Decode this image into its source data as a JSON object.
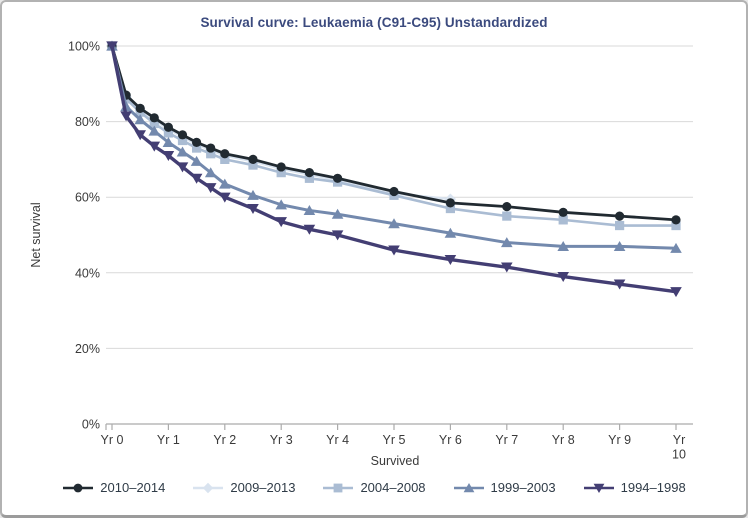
{
  "chart": {
    "title_color": "#3b4a7e",
    "gridline_color": "#d9d9d9",
    "axis_line_color": "#ababab",
    "tick_label_color": "#3a3a3a",
    "legend_text_color": "#2f3b47"
  },
  "chart_data": {
    "type": "line",
    "title": "Survival curve: Leukaemia (C91-C95) Unstandardized",
    "xlabel": "Survived",
    "ylabel": "Net survival",
    "x_unit": "years survived",
    "ylim": [
      0,
      100
    ],
    "xlim": [
      0,
      10
    ],
    "grid": "horizontal",
    "legend_position": "bottom",
    "y_tick_values": [
      0,
      20,
      40,
      60,
      80,
      100
    ],
    "y_tick_labels": [
      "0%",
      "20%",
      "40%",
      "60%",
      "80%",
      "100%"
    ],
    "x_tick_values": [
      0,
      1,
      2,
      3,
      4,
      5,
      6,
      7,
      8,
      9,
      10
    ],
    "x_tick_labels": [
      "Yr 0",
      "Yr 1",
      "Yr 2",
      "Yr 3",
      "Yr 4",
      "Yr 5",
      "Yr 6",
      "Yr 7",
      "Yr 8",
      "Yr 9",
      "Yr 10"
    ],
    "x": [
      0,
      0.25,
      0.5,
      0.75,
      1,
      1.25,
      1.5,
      1.75,
      2,
      2.5,
      3,
      3.5,
      4,
      5,
      6,
      7,
      8,
      9,
      10
    ],
    "series": [
      {
        "name": "2010–2014",
        "marker": "circle",
        "color": "#212a31",
        "line_width": 2.8,
        "values": [
          100,
          87,
          83.5,
          81,
          78.5,
          76.5,
          74.5,
          73,
          71.5,
          70,
          68,
          66.5,
          65,
          61.5,
          58.5,
          57.5,
          56,
          55,
          54
        ]
      },
      {
        "name": "2009–2013",
        "marker": "diamond",
        "color": "#d9e3ef",
        "line_width": 2.4,
        "values": [
          100,
          86.5,
          83,
          80.5,
          78,
          76,
          74,
          72.5,
          71,
          69.5,
          67.5,
          66,
          64.5,
          61,
          59.5
        ]
      },
      {
        "name": "2004–2008",
        "marker": "square",
        "color": "#aabcd3",
        "line_width": 2.6,
        "values": [
          100,
          86,
          82.5,
          79.5,
          77,
          75,
          73,
          71.5,
          70,
          68.5,
          66.5,
          65,
          64,
          60.5,
          57,
          55,
          54,
          52.5,
          52.5
        ]
      },
      {
        "name": "1999–2003",
        "marker": "triangle-up",
        "color": "#7389ad",
        "line_width": 3.0,
        "values": [
          100,
          84,
          80.5,
          77.5,
          74.5,
          72,
          69.5,
          66.5,
          63.5,
          60.5,
          58,
          56.5,
          55.5,
          53,
          50.5,
          48,
          47,
          47,
          46.5
        ]
      },
      {
        "name": "1994–1998",
        "marker": "triangle-down",
        "color": "#433e73",
        "line_width": 3.4,
        "values": [
          100,
          81.5,
          76.5,
          73.5,
          71,
          68,
          65,
          62.5,
          60,
          57,
          53.5,
          51.5,
          50,
          46,
          43.5,
          41.5,
          39,
          37,
          35
        ]
      }
    ]
  }
}
